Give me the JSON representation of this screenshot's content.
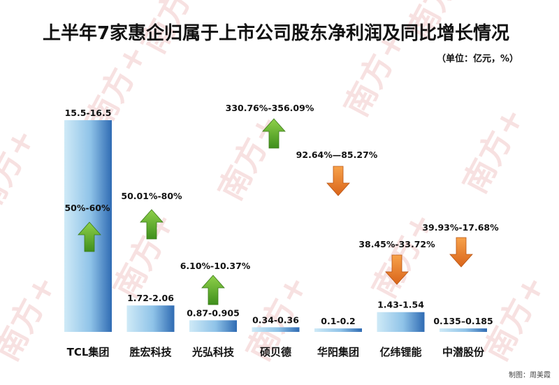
{
  "chart_data": {
    "type": "bar",
    "title": "上半年7家惠企归属于上市公司股东净利润及同比增长情况",
    "unit_note": "（单位：亿元，%）",
    "categories": [
      "TCL集团",
      "胜宏科技",
      "光弘科技",
      "硕贝德",
      "华阳集团",
      "亿纬锂能",
      "中潜股份"
    ],
    "value_labels": [
      "15.5-16.5",
      "1.72-2.06",
      "0.87-0.905",
      "0.34-0.36",
      "0.1-0.2",
      "1.43-1.54",
      "0.135–0.185"
    ],
    "values_range": [
      [
        15.5,
        16.5
      ],
      [
        1.72,
        2.06
      ],
      [
        0.87,
        0.905
      ],
      [
        0.34,
        0.36
      ],
      [
        0.1,
        0.2
      ],
      [
        1.43,
        1.54
      ],
      [
        0.135,
        0.185
      ]
    ],
    "growth_labels": [
      "50%-60%",
      "50.01%-80%",
      "6.10%-10.37%",
      "330.76%-356.09%",
      "92.64%—85.27%",
      "38.45%-33.72%",
      "39.93%-17.68%"
    ],
    "growth_direction": [
      "up",
      "up",
      "up",
      "up",
      "down",
      "down",
      "down"
    ],
    "colors": {
      "bar_light": "#bfe3f5",
      "bar_dark": "#2f6fb5",
      "arrow_up": "#6dbb2f",
      "arrow_down": "#f08a2a",
      "watermark": "#e9a0a0"
    },
    "credit": "制图：周美霞",
    "watermark": "南方+"
  }
}
